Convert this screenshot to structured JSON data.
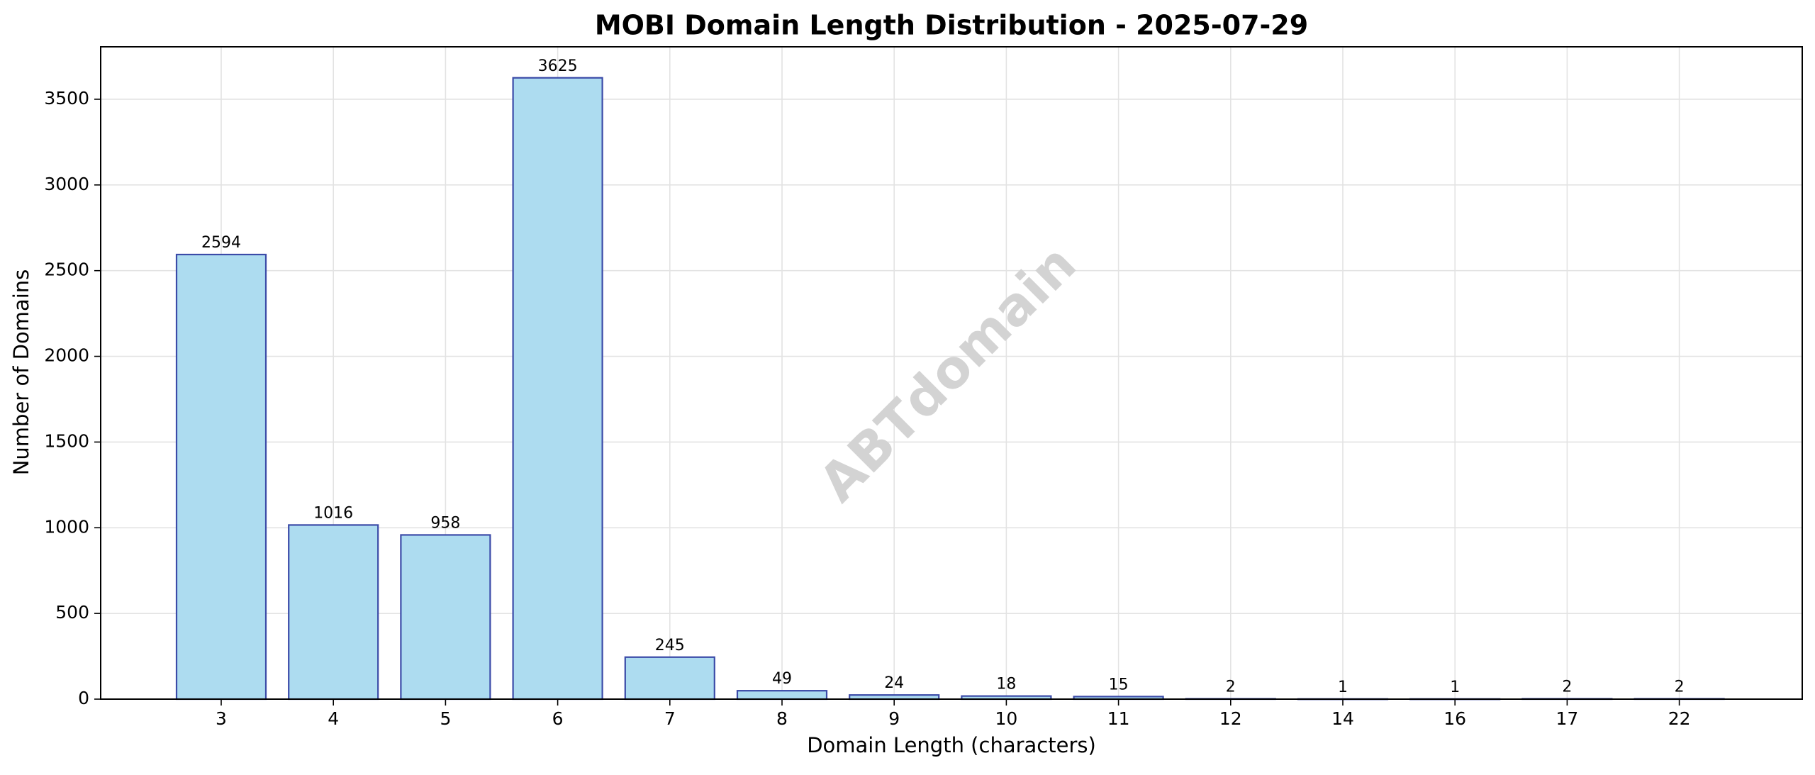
{
  "chart_data": {
    "type": "bar",
    "title": "MOBI Domain Length Distribution - 2025-07-29",
    "xlabel": "Domain Length (characters)",
    "ylabel": "Number of Domains",
    "categories": [
      "3",
      "4",
      "5",
      "6",
      "7",
      "8",
      "9",
      "10",
      "11",
      "12",
      "14",
      "16",
      "17",
      "22"
    ],
    "values": [
      2594,
      1016,
      958,
      3625,
      245,
      49,
      24,
      18,
      15,
      2,
      1,
      1,
      2,
      2
    ],
    "data_labels": [
      "2594",
      "1016",
      "958",
      "3625",
      "245",
      "49",
      "24",
      "18",
      "15",
      "2",
      "1",
      "1",
      "2",
      "2"
    ],
    "yticks": [
      0,
      500,
      1000,
      1500,
      2000,
      2500,
      3000,
      3500
    ],
    "ytick_labels": [
      "0",
      "500",
      "1000",
      "1500",
      "2000",
      "2500",
      "3000",
      "3500"
    ],
    "ylim": [
      0,
      3806
    ],
    "grid": true,
    "watermark": "ABTdomain",
    "colors": {
      "bar_fill": "#ADDCF0",
      "bar_edge": "#3B4BA8",
      "grid": "#E3E3E3",
      "watermark": "#D3D3D3",
      "axis": "#000000"
    }
  }
}
